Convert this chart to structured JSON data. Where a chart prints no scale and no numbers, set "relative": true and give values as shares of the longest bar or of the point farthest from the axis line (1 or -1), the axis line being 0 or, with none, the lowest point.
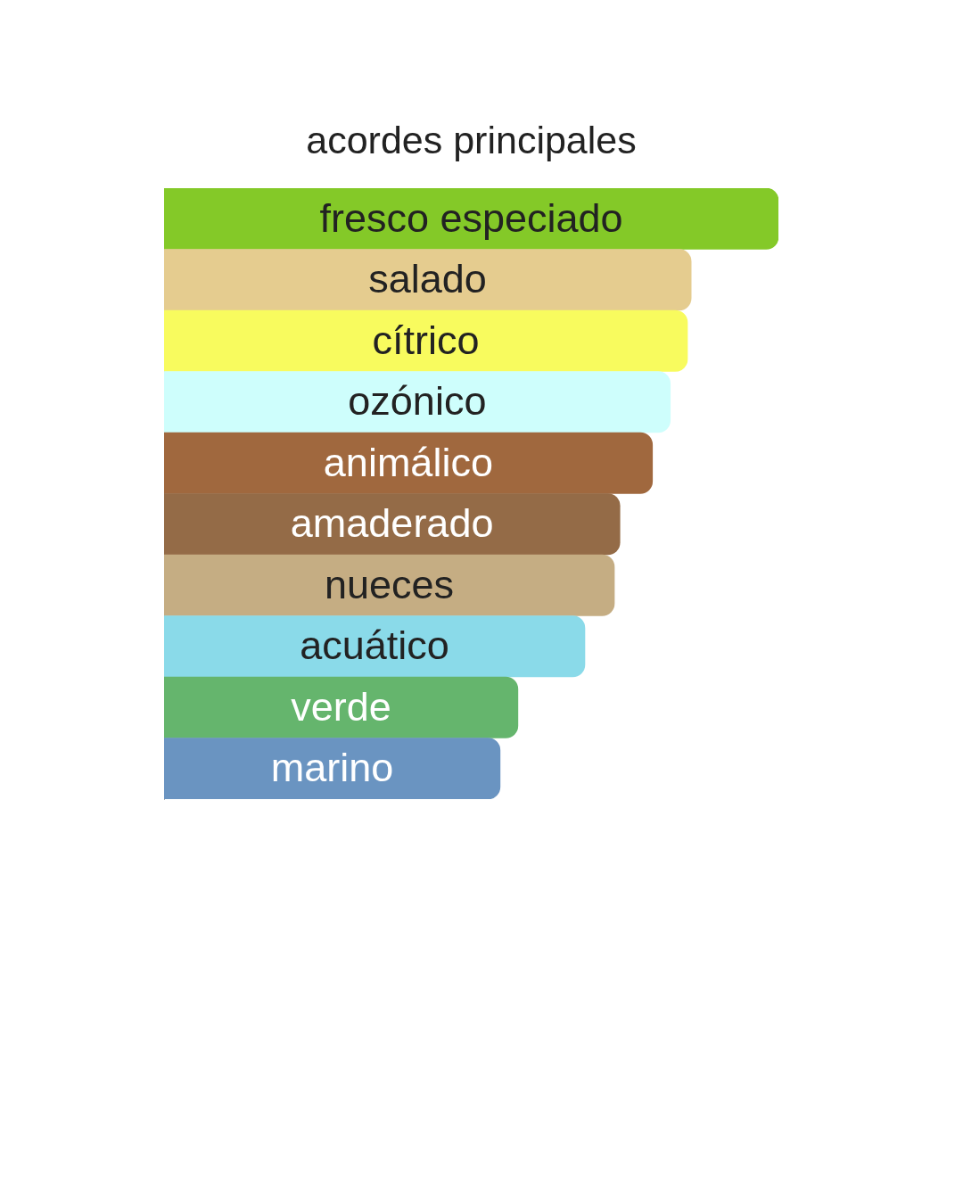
{
  "chart_data": {
    "type": "bar",
    "orientation": "horizontal",
    "relative": true,
    "title": "acordes principales",
    "categories": [
      "fresco especiado",
      "salado",
      "cítrico",
      "ozónico",
      "animálico",
      "amaderado",
      "nueces",
      "acuático",
      "verde",
      "marino"
    ],
    "values": [
      1,
      0.858,
      0.852,
      0.824,
      0.795,
      0.742,
      0.733,
      0.685,
      0.576,
      0.547
    ],
    "colors": [
      "#84c928",
      "#e5cc8f",
      "#f8fb5e",
      "#cefefc",
      "#a0683e",
      "#946b47",
      "#c5ad83",
      "#8adae9",
      "#65b56d",
      "#6a94c1"
    ]
  }
}
